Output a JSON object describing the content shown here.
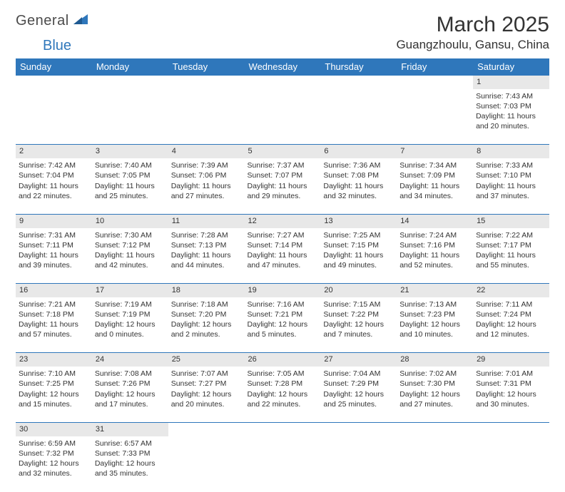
{
  "brand": {
    "part1": "General",
    "part2": "Blue"
  },
  "header": {
    "month_title": "March 2025",
    "location": "Guangzhoulu, Gansu, China"
  },
  "colors": {
    "accent": "#2f77bb",
    "header_bg": "#2f77bb",
    "daynum_bg": "#e8e8e8",
    "page_bg": "#ffffff",
    "text": "#333333"
  },
  "weekdays": [
    "Sunday",
    "Monday",
    "Tuesday",
    "Wednesday",
    "Thursday",
    "Friday",
    "Saturday"
  ],
  "weeks": [
    [
      null,
      null,
      null,
      null,
      null,
      null,
      {
        "n": "1",
        "sr": "Sunrise: 7:43 AM",
        "ss": "Sunset: 7:03 PM",
        "d1": "Daylight: 11 hours",
        "d2": "and 20 minutes."
      }
    ],
    [
      {
        "n": "2",
        "sr": "Sunrise: 7:42 AM",
        "ss": "Sunset: 7:04 PM",
        "d1": "Daylight: 11 hours",
        "d2": "and 22 minutes."
      },
      {
        "n": "3",
        "sr": "Sunrise: 7:40 AM",
        "ss": "Sunset: 7:05 PM",
        "d1": "Daylight: 11 hours",
        "d2": "and 25 minutes."
      },
      {
        "n": "4",
        "sr": "Sunrise: 7:39 AM",
        "ss": "Sunset: 7:06 PM",
        "d1": "Daylight: 11 hours",
        "d2": "and 27 minutes."
      },
      {
        "n": "5",
        "sr": "Sunrise: 7:37 AM",
        "ss": "Sunset: 7:07 PM",
        "d1": "Daylight: 11 hours",
        "d2": "and 29 minutes."
      },
      {
        "n": "6",
        "sr": "Sunrise: 7:36 AM",
        "ss": "Sunset: 7:08 PM",
        "d1": "Daylight: 11 hours",
        "d2": "and 32 minutes."
      },
      {
        "n": "7",
        "sr": "Sunrise: 7:34 AM",
        "ss": "Sunset: 7:09 PM",
        "d1": "Daylight: 11 hours",
        "d2": "and 34 minutes."
      },
      {
        "n": "8",
        "sr": "Sunrise: 7:33 AM",
        "ss": "Sunset: 7:10 PM",
        "d1": "Daylight: 11 hours",
        "d2": "and 37 minutes."
      }
    ],
    [
      {
        "n": "9",
        "sr": "Sunrise: 7:31 AM",
        "ss": "Sunset: 7:11 PM",
        "d1": "Daylight: 11 hours",
        "d2": "and 39 minutes."
      },
      {
        "n": "10",
        "sr": "Sunrise: 7:30 AM",
        "ss": "Sunset: 7:12 PM",
        "d1": "Daylight: 11 hours",
        "d2": "and 42 minutes."
      },
      {
        "n": "11",
        "sr": "Sunrise: 7:28 AM",
        "ss": "Sunset: 7:13 PM",
        "d1": "Daylight: 11 hours",
        "d2": "and 44 minutes."
      },
      {
        "n": "12",
        "sr": "Sunrise: 7:27 AM",
        "ss": "Sunset: 7:14 PM",
        "d1": "Daylight: 11 hours",
        "d2": "and 47 minutes."
      },
      {
        "n": "13",
        "sr": "Sunrise: 7:25 AM",
        "ss": "Sunset: 7:15 PM",
        "d1": "Daylight: 11 hours",
        "d2": "and 49 minutes."
      },
      {
        "n": "14",
        "sr": "Sunrise: 7:24 AM",
        "ss": "Sunset: 7:16 PM",
        "d1": "Daylight: 11 hours",
        "d2": "and 52 minutes."
      },
      {
        "n": "15",
        "sr": "Sunrise: 7:22 AM",
        "ss": "Sunset: 7:17 PM",
        "d1": "Daylight: 11 hours",
        "d2": "and 55 minutes."
      }
    ],
    [
      {
        "n": "16",
        "sr": "Sunrise: 7:21 AM",
        "ss": "Sunset: 7:18 PM",
        "d1": "Daylight: 11 hours",
        "d2": "and 57 minutes."
      },
      {
        "n": "17",
        "sr": "Sunrise: 7:19 AM",
        "ss": "Sunset: 7:19 PM",
        "d1": "Daylight: 12 hours",
        "d2": "and 0 minutes."
      },
      {
        "n": "18",
        "sr": "Sunrise: 7:18 AM",
        "ss": "Sunset: 7:20 PM",
        "d1": "Daylight: 12 hours",
        "d2": "and 2 minutes."
      },
      {
        "n": "19",
        "sr": "Sunrise: 7:16 AM",
        "ss": "Sunset: 7:21 PM",
        "d1": "Daylight: 12 hours",
        "d2": "and 5 minutes."
      },
      {
        "n": "20",
        "sr": "Sunrise: 7:15 AM",
        "ss": "Sunset: 7:22 PM",
        "d1": "Daylight: 12 hours",
        "d2": "and 7 minutes."
      },
      {
        "n": "21",
        "sr": "Sunrise: 7:13 AM",
        "ss": "Sunset: 7:23 PM",
        "d1": "Daylight: 12 hours",
        "d2": "and 10 minutes."
      },
      {
        "n": "22",
        "sr": "Sunrise: 7:11 AM",
        "ss": "Sunset: 7:24 PM",
        "d1": "Daylight: 12 hours",
        "d2": "and 12 minutes."
      }
    ],
    [
      {
        "n": "23",
        "sr": "Sunrise: 7:10 AM",
        "ss": "Sunset: 7:25 PM",
        "d1": "Daylight: 12 hours",
        "d2": "and 15 minutes."
      },
      {
        "n": "24",
        "sr": "Sunrise: 7:08 AM",
        "ss": "Sunset: 7:26 PM",
        "d1": "Daylight: 12 hours",
        "d2": "and 17 minutes."
      },
      {
        "n": "25",
        "sr": "Sunrise: 7:07 AM",
        "ss": "Sunset: 7:27 PM",
        "d1": "Daylight: 12 hours",
        "d2": "and 20 minutes."
      },
      {
        "n": "26",
        "sr": "Sunrise: 7:05 AM",
        "ss": "Sunset: 7:28 PM",
        "d1": "Daylight: 12 hours",
        "d2": "and 22 minutes."
      },
      {
        "n": "27",
        "sr": "Sunrise: 7:04 AM",
        "ss": "Sunset: 7:29 PM",
        "d1": "Daylight: 12 hours",
        "d2": "and 25 minutes."
      },
      {
        "n": "28",
        "sr": "Sunrise: 7:02 AM",
        "ss": "Sunset: 7:30 PM",
        "d1": "Daylight: 12 hours",
        "d2": "and 27 minutes."
      },
      {
        "n": "29",
        "sr": "Sunrise: 7:01 AM",
        "ss": "Sunset: 7:31 PM",
        "d1": "Daylight: 12 hours",
        "d2": "and 30 minutes."
      }
    ],
    [
      {
        "n": "30",
        "sr": "Sunrise: 6:59 AM",
        "ss": "Sunset: 7:32 PM",
        "d1": "Daylight: 12 hours",
        "d2": "and 32 minutes."
      },
      {
        "n": "31",
        "sr": "Sunrise: 6:57 AM",
        "ss": "Sunset: 7:33 PM",
        "d1": "Daylight: 12 hours",
        "d2": "and 35 minutes."
      },
      null,
      null,
      null,
      null,
      null
    ]
  ]
}
